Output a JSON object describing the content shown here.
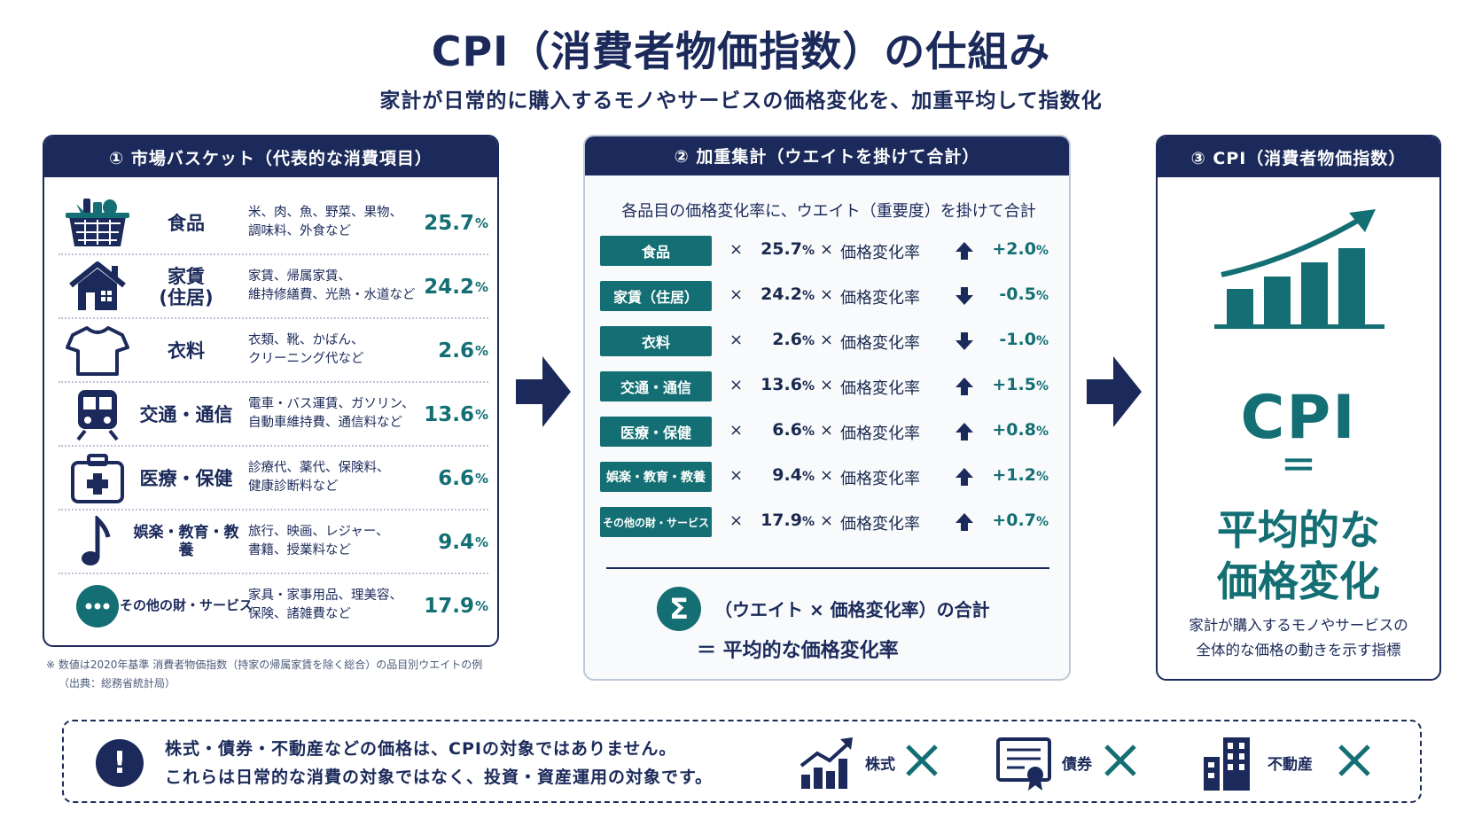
{
  "header": {
    "title": "CPI（消費者物価指数）の仕組み",
    "subtitle": "家計が日常的に購入するモノやサービスの価格変化を、加重平均して指数化"
  },
  "colors": {
    "navy": "#1b2a5a",
    "teal": "#136f73"
  },
  "basket": {
    "heading": "① 市場バスケット（代表的な消費項目）",
    "items": [
      {
        "name": "食品",
        "desc1": "米、肉、魚、野菜、果物、",
        "desc2": "調味料、外食など",
        "pct": "25.7",
        "unit": "%",
        "icon": "food-basket-icon"
      },
      {
        "name": "家賃\n(住居)",
        "desc1": "家賃、帰属家賃、",
        "desc2": "維持修繕費、光熱・水道など",
        "pct": "24.2",
        "unit": "%",
        "icon": "house-icon"
      },
      {
        "name": "衣料",
        "desc1": "衣類、靴、かばん、",
        "desc2": "クリーニング代など",
        "pct": "2.6",
        "unit": "%",
        "icon": "tshirt-icon"
      },
      {
        "name": "交通・通信",
        "desc1": "電車・バス運賃、ガソリン、",
        "desc2": "自動車維持費、通信料など",
        "pct": "13.6",
        "unit": "%",
        "icon": "train-icon"
      },
      {
        "name": "医療・保健",
        "desc1": "診療代、薬代、保険料、",
        "desc2": "健康診断料など",
        "pct": "6.6",
        "unit": "%",
        "icon": "first-aid-kit-icon"
      },
      {
        "name": "娯楽・教育・教養",
        "desc1": "旅行、映画、レジャー、",
        "desc2": "書籍、授業料など",
        "pct": "9.4",
        "unit": "%",
        "icon": "music-note-icon"
      },
      {
        "name": "その他の財・サービス",
        "desc1": "家具・家事用品、理美容、",
        "desc2": "保険、諸雑費など",
        "pct": "17.9",
        "unit": "%",
        "icon": "more-dots-icon"
      }
    ],
    "note1": "※ 数値は2020年基準 消費者物価指数（持家の帰属家賃を除く総合）の品目別ウエイトの例",
    "note2": "（出典：総務省統計局）"
  },
  "weighted": {
    "heading": "② 加重集計（ウエイトを掛けて合計）",
    "lead": "各品目の価格変化率に、ウエイト（重要度）を掛けて合計",
    "times": "×",
    "rate_label": "価格変化率",
    "rows": [
      {
        "tag": "食品",
        "weight": "25.7",
        "unit": "%",
        "change": "+2.0",
        "direction": "up"
      },
      {
        "tag": "家賃（住居）",
        "weight": "24.2",
        "unit": "%",
        "change": "-0.5",
        "direction": "down"
      },
      {
        "tag": "衣料",
        "weight": "2.6",
        "unit": "%",
        "change": "-1.0",
        "direction": "down"
      },
      {
        "tag": "交通・通信",
        "weight": "13.6",
        "unit": "%",
        "change": "+1.5",
        "direction": "up"
      },
      {
        "tag": "医療・保健",
        "weight": "6.6",
        "unit": "%",
        "change": "+0.8",
        "direction": "up"
      },
      {
        "tag": "娯楽・教育・教養",
        "weight": "9.4",
        "unit": "%",
        "change": "+1.2",
        "direction": "up"
      },
      {
        "tag": "その他の財・サービス",
        "weight": "17.9",
        "unit": "%",
        "change": "+0.7",
        "direction": "up"
      }
    ],
    "sigma": "Σ",
    "sum_line1": "（ウエイト × 価格変化率）の合計",
    "sum_line2": "＝ 平均的な価格変化率"
  },
  "cpi": {
    "heading": "③ CPI（消費者物価指数）",
    "big": "CPI",
    "equals": "＝",
    "line1": "平均的な",
    "line2": "価格変化",
    "desc1": "家計が購入するモノやサービスの",
    "desc2": "全体的な価格の動きを示す指標"
  },
  "bottom": {
    "mark": "!",
    "line1": "株式・債券・不動産などの価格は、CPIの対象ではありません。",
    "line2": "これらは日常的な消費の対象ではなく、投資・資産運用の対象です。",
    "items": [
      {
        "label": "株式",
        "icon": "stock-chart-icon"
      },
      {
        "label": "債券",
        "icon": "bond-certificate-icon"
      },
      {
        "label": "不動産",
        "icon": "building-icon"
      }
    ]
  }
}
